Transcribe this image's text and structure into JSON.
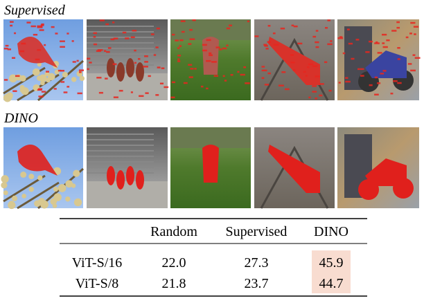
{
  "sections": [
    {
      "label": "Supervised"
    },
    {
      "label": "DINO"
    }
  ],
  "table": {
    "header": [
      "Random",
      "Supervised",
      "DINO"
    ],
    "rows": [
      [
        "ViT-S/16",
        "22.0",
        "27.3",
        "45.9"
      ],
      [
        "ViT-S/8",
        "21.8",
        "23.7",
        "44.7"
      ]
    ]
  }
}
